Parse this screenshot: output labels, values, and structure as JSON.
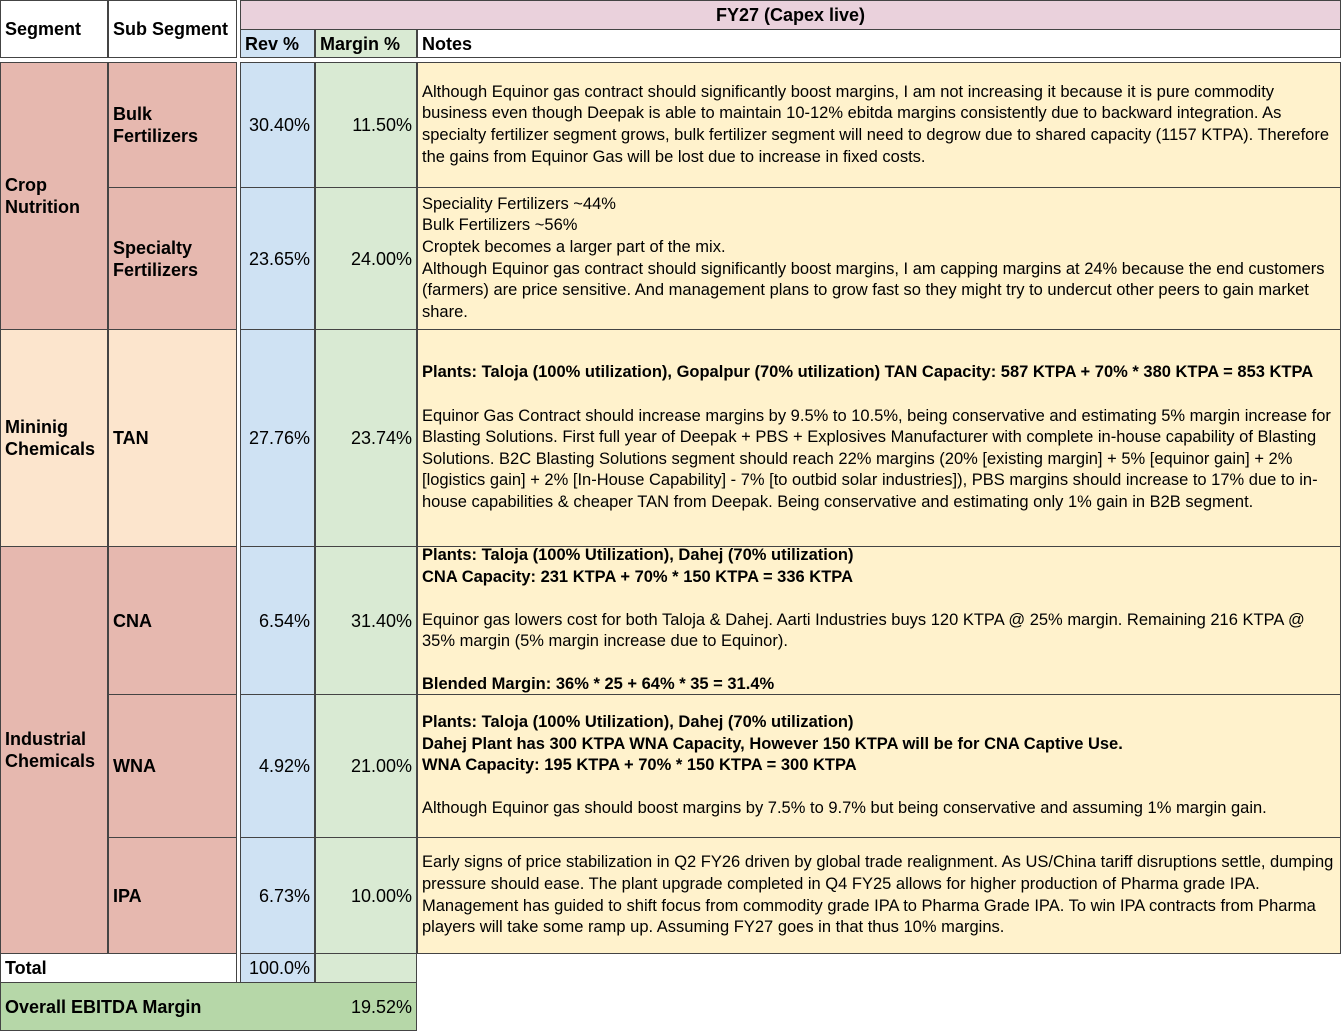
{
  "header": {
    "segment": "Segment",
    "sub_segment": "Sub Segment",
    "period": "FY27 (Capex live)",
    "rev": "Rev %",
    "margin": "Margin %",
    "notes": "Notes"
  },
  "segments": [
    {
      "name": "Crop Nutrition",
      "color": "#e6b8af",
      "rows": [
        {
          "sub": "Bulk Fertilizers",
          "rev": "30.40%",
          "margin": "11.50%",
          "notes": [
            {
              "bold": false,
              "lines": [
                "Although Equinor gas contract should significantly boost margins, I am not increasing it because it is pure commodity business even though Deepak is able to maintain 10-12% ebitda margins consistently due to backward integration. As specialty fertilizer segment grows, bulk fertilizer segment will need to degrow due to shared capacity (1157 KTPA). Therefore the gains from Equinor Gas will be lost due to increase in fixed costs."
              ]
            }
          ]
        },
        {
          "sub": "Specialty Fertilizers",
          "rev": "23.65%",
          "margin": "24.00%",
          "notes": [
            {
              "bold": false,
              "lines": [
                "Speciality Fertilizers ~44%",
                "Bulk Fertilizers ~56%",
                "Croptek becomes a larger part of the mix.",
                "Although Equinor gas contract should significantly boost margins, I am capping margins at 24% because the end customers (farmers) are price sensitive. And management plans to grow fast so they might try to undercut other peers to gain market share."
              ]
            }
          ]
        }
      ]
    },
    {
      "name": "Mininig Chemicals",
      "color": "#fce5cd",
      "rows": [
        {
          "sub": "TAN",
          "rev": "27.76%",
          "margin": "23.74%",
          "notes": [
            {
              "bold": true,
              "lines": [
                "Plants: Taloja (100% utilization), Gopalpur (70% utilization) TAN Capacity: 587 KTPA + 70% * 380 KTPA = 853 KTPA"
              ]
            },
            {
              "bold": false,
              "lines": [
                "Equinor Gas Contract should increase margins by 9.5% to 10.5%, being conservative and estimating 5% margin increase for Blasting Solutions. First full year of Deepak + PBS + Explosives Manufacturer with complete in-house capability of Blasting Solutions. B2C Blasting Solutions segment should reach 22% margins (20% [existing margin] + 5% [equinor gain] + 2% [logistics gain] + 2% [In-House Capability] - 7% [to outbid solar industries]), PBS margins should increase to 17% due to in-house capabilities & cheaper TAN from Deepak. Being conservative and estimating only 1% gain in B2B segment."
              ]
            }
          ]
        }
      ]
    },
    {
      "name": "Industrial Chemicals",
      "color": "#e6b8af",
      "rows": [
        {
          "sub": "CNA",
          "rev": "6.54%",
          "margin": "31.40%",
          "notes": [
            {
              "bold": true,
              "lines": [
                "Plants: Taloja (100% Utilization), Dahej (70% utilization)",
                "CNA Capacity: 231 KTPA + 70% * 150 KTPA = 336 KTPA"
              ]
            },
            {
              "bold": false,
              "lines": [
                "Equinor gas lowers cost for both Taloja & Dahej. Aarti Industries buys 120 KTPA @ 25% margin. Remaining 216 KTPA @ 35% margin (5% margin increase due to Equinor)."
              ]
            },
            {
              "bold": true,
              "lines": [
                "Blended Margin: 36% * 25 + 64% * 35 = 31.4%"
              ]
            }
          ]
        },
        {
          "sub": "WNA",
          "rev": "4.92%",
          "margin": "21.00%",
          "notes": [
            {
              "bold": true,
              "lines": [
                "Plants: Taloja (100% Utilization), Dahej (70% utilization)",
                "Dahej Plant has 300 KTPA WNA Capacity, However 150 KTPA will be for CNA Captive Use.",
                "WNA Capacity: 195 KTPA + 70% * 150 KTPA = 300 KTPA"
              ]
            },
            {
              "bold": false,
              "lines": [
                "Although Equinor gas should boost margins by 7.5% to 9.7% but being conservative and assuming 1% margin gain."
              ]
            }
          ]
        },
        {
          "sub": "IPA",
          "rev": "6.73%",
          "margin": "10.00%",
          "notes": [
            {
              "bold": false,
              "lines": [
                "Early signs of price stabilization in Q2 FY26 driven by global trade realignment. As US/China tariff disruptions settle, dumping pressure should ease. The plant upgrade completed in Q4 FY25 allows for higher production of Pharma grade IPA. Management has guided to shift focus from commodity grade IPA to Pharma Grade IPA. To win IPA contracts from Pharma players will take some ramp up. Assuming FY27 goes in that thus 10% margins."
              ]
            }
          ]
        }
      ]
    }
  ],
  "total": {
    "label": "Total",
    "rev": "100.0%"
  },
  "overall": {
    "label": "Overall EBITDA Margin",
    "value": "19.52%"
  }
}
